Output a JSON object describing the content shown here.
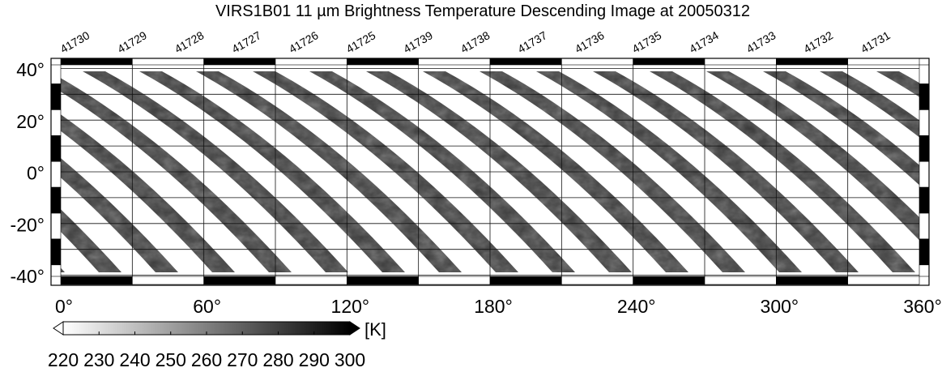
{
  "title": "VIRS1B01 11 µm Brightness Temperature Descending Image at 20050312",
  "orbits": [
    "41730",
    "41729",
    "41728",
    "41727",
    "41726",
    "41725",
    "41739",
    "41738",
    "41737",
    "41736",
    "41735",
    "41734",
    "41733",
    "41732",
    "41731"
  ],
  "lat_labels": [
    "40°",
    "20°",
    "0°",
    "-20°",
    "-40°"
  ],
  "lon_labels": [
    "0°",
    "60°",
    "120°",
    "180°",
    "240°",
    "300°",
    "360°"
  ],
  "colorbar": {
    "unit": "[K]",
    "labels": [
      "220",
      "230",
      "240",
      "250",
      "260",
      "270",
      "280",
      "290",
      "300"
    ]
  }
}
